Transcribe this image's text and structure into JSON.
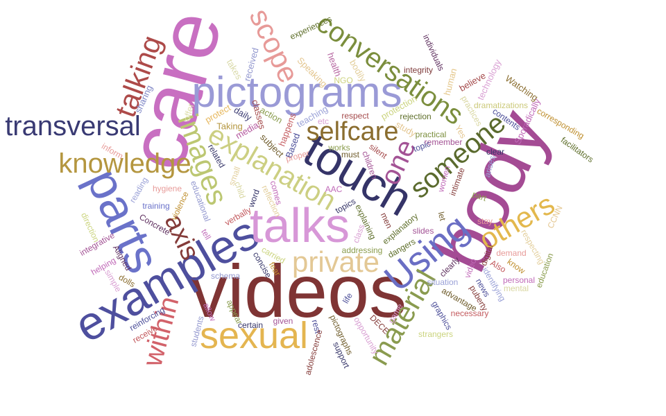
{
  "words": {
    "videos": {
      "text": "videos",
      "color": "#7f3434"
    },
    "care": {
      "text": "care",
      "color": "#c86fc1"
    },
    "body": {
      "text": "body",
      "color": "#a44b94"
    },
    "pictograms": {
      "text": "pictograms",
      "color": "#9a9ad6"
    },
    "examples": {
      "text": "examples",
      "color": "#4e4f9e"
    },
    "talks": {
      "text": "talks",
      "color": "#d797d7"
    },
    "touch": {
      "text": "touch",
      "color": "#353468"
    },
    "transversal": {
      "text": "transversal",
      "color": "#393a73"
    },
    "sexual": {
      "text": "sexual",
      "color": "#e4b550"
    },
    "parts": {
      "text": "parts",
      "color": "#6a72c9"
    },
    "explanation": {
      "text": "explanation",
      "color": "#cccf82"
    },
    "conversations": {
      "text": "conversations",
      "color": "#7b8e3d"
    },
    "Using": {
      "text": "Using",
      "color": "#6a6ec4"
    },
    "knowledge": {
      "text": "knowledge",
      "color": "#b4963f"
    },
    "private": {
      "text": "private",
      "color": "#e3c895"
    },
    "material": {
      "text": "material",
      "color": "#8a9b4f"
    },
    "selfcare": {
      "text": "selfcare",
      "color": "#8a6d2f"
    },
    "someone": {
      "text": "someone",
      "color": "#5a6a2d"
    },
    "others": {
      "text": "others",
      "color": "#e3b84d"
    },
    "images": {
      "text": "images",
      "color": "#bcc772"
    },
    "talking": {
      "text": "talking",
      "color": "#ad4a49"
    },
    "scope": {
      "text": "scope",
      "color": "#e79a98"
    },
    "within": {
      "text": "within",
      "color": "#d2626a"
    },
    "axis": {
      "text": "axis",
      "color": "#843b39"
    },
    "one": {
      "text": "one",
      "color": "#a35395"
    },
    "experiences": {
      "text": "experiences",
      "color": "#5e6e2a"
    },
    "received": {
      "text": "received",
      "color": "#9297ce"
    },
    "takes": {
      "text": "takes",
      "color": "#d9d9a8"
    },
    "sharing": {
      "text": "sharing",
      "color": "#7d85c5"
    },
    "offer": {
      "text": "offer",
      "color": "#dfe0b0"
    },
    "protect": {
      "text": "protect",
      "color": "#e6b75c"
    },
    "daily": {
      "text": "daily",
      "color": "#3e3e74"
    },
    "classes": {
      "text": "classes",
      "color": "#a44a4b"
    },
    "action": {
      "text": "action",
      "color": "#8a9c4d"
    },
    "Taking": {
      "text": "Taking",
      "color": "#b4963f"
    },
    "media": {
      "text": "media",
      "color": "#b4579e"
    },
    "health": {
      "text": "health",
      "color": "#b5649f"
    },
    "bodily": {
      "text": "bodily",
      "color": "#e3cf9c"
    },
    "NGO": {
      "text": "NGO",
      "color": "#cdd27f"
    },
    "Speaking": {
      "text": "Speaking",
      "color": "#e3c58e"
    },
    "teaching": {
      "text": "teaching",
      "color": "#9aa1d7"
    },
    "happens": {
      "text": "happens",
      "color": "#c35a5e"
    },
    "subject": {
      "text": "subject",
      "color": "#6e5b2a"
    },
    "Based": {
      "text": "Based",
      "color": "#4b4d98"
    },
    "etc": {
      "text": "etc",
      "color": "#d9a0d3"
    },
    "respect": {
      "text": "respect",
      "color": "#a44a4b"
    },
    "protection": {
      "text": "protection",
      "color": "#cbd47f"
    },
    "integrity": {
      "text": "integrity",
      "color": "#7e3a3a"
    },
    "individuals": {
      "text": "individuals",
      "color": "#5e2f5e"
    },
    "human": {
      "text": "human",
      "color": "#e4c78b"
    },
    "believe": {
      "text": "believe",
      "color": "#a44a4b"
    },
    "technology": {
      "text": "technology",
      "color": "#d9a0d3"
    },
    "Watching": {
      "text": "Watching",
      "color": "#8a6d2f"
    },
    "practices": {
      "text": "practices",
      "color": "#d8d6a0"
    },
    "dramatizations": {
      "text": "dramatizations",
      "color": "#cbc979"
    },
    "contents": {
      "text": "contents",
      "color": "#4b4d98"
    },
    "Sporadically": {
      "text": "Sporadically",
      "color": "#c06ab8"
    },
    "corresponding": {
      "text": "corresponding",
      "color": "#bf8f2f"
    },
    "facilitators": {
      "text": "facilitators",
      "color": "#5e6e2a"
    },
    "rejection": {
      "text": "rejection",
      "color": "#5e6e2a"
    },
    "study": {
      "text": "study",
      "color": "#e3c58e"
    },
    "practical": {
      "text": "practical",
      "color": "#7b8e3d"
    },
    "remember": {
      "text": "remember",
      "color": "#a35395"
    },
    "topic": {
      "text": "topic",
      "color": "#4b4d98"
    },
    "Yes": {
      "text": "Yes",
      "color": "#e3c58e"
    },
    "works": {
      "text": "works",
      "color": "#8a9c4d"
    },
    "must": {
      "text": "must",
      "color": "#6e5b2a"
    },
    "silent": {
      "text": "silent",
      "color": "#a44a4b"
    },
    "children": {
      "text": "children",
      "color": "#a35395"
    },
    "clear": {
      "text": "clear",
      "color": "#353468"
    },
    "arises": {
      "text": "arises",
      "color": "#9aa1d7"
    },
    "women": {
      "text": "women",
      "color": "#c06ab8"
    },
    "intimate": {
      "text": "intimate",
      "color": "#843b39"
    },
    "part": {
      "text": "part",
      "color": "#8a9c4d"
    },
    "stay": {
      "text": "stay",
      "color": "#e79a98"
    },
    "CCNN": {
      "text": "CCNN",
      "color": "#e3c58e"
    },
    "respecting": {
      "text": "respecting",
      "color": "#e3cf9c"
    },
    "related": {
      "text": "related",
      "color": "#353468"
    },
    "small": {
      "text": "small",
      "color": "#e3cf9c"
    },
    "proper": {
      "text": "proper",
      "color": "#e79a98"
    },
    "AAC": {
      "text": "AAC",
      "color": "#c06ab8"
    },
    "topics": {
      "text": "topics",
      "color": "#353468"
    },
    "men": {
      "text": "men",
      "color": "#843b39"
    },
    "explaining": {
      "text": "explaining",
      "color": "#5e6e2a"
    },
    "explanatory": {
      "text": "explanatory",
      "color": "#5e6e2a"
    },
    "slides": {
      "text": "slides",
      "color": "#a35395"
    },
    "let": {
      "text": "let",
      "color": "#6e5b2a"
    },
    "hygiene": {
      "text": "hygiene",
      "color": "#e79a98"
    },
    "reading": {
      "text": "reading",
      "color": "#9aa1d7"
    },
    "inform": {
      "text": "inform",
      "color": "#e79a98"
    },
    "educational": {
      "text": "educational",
      "color": "#9297ce"
    },
    "child": {
      "text": "child",
      "color": "#d8d6a0"
    },
    "word": {
      "text": "word",
      "color": "#353468"
    },
    "comes": {
      "text": "comes",
      "color": "#c06ab8"
    },
    "reflection": {
      "text": "reflection",
      "color": "#e3cf9c"
    },
    "verbally": {
      "text": "verbally",
      "color": "#c35a5e"
    },
    "training": {
      "text": "training",
      "color": "#6a72c9"
    },
    "violence": {
      "text": "violence",
      "color": "#bf8f2f"
    },
    "Concrete": {
      "text": "Concrete",
      "color": "#5e2f5e"
    },
    "tell": {
      "text": "tell",
      "color": "#c06ab8"
    },
    "direction": {
      "text": "direction",
      "color": "#cbd47f"
    },
    "integrative": {
      "text": "integrative",
      "color": "#a35395"
    },
    "Aligned": {
      "text": "Aligned",
      "color": "#5e2f5e"
    },
    "helping": {
      "text": "helping",
      "color": "#c06ab8"
    },
    "simple": {
      "text": "simple",
      "color": "#d9a0d3"
    },
    "dolls": {
      "text": "dolls",
      "color": "#8a6d2f"
    },
    "class": {
      "text": "class",
      "color": "#d9a0d3"
    },
    "addressing": {
      "text": "addressing",
      "color": "#8a9c4d"
    },
    "dangers": {
      "text": "dangers",
      "color": "#5e6e2a"
    },
    "carried": {
      "text": "carried",
      "color": "#cbd47f"
    },
    "clearly": {
      "text": "clearly",
      "color": "#5e2f5e"
    },
    "video": {
      "text": "video",
      "color": "#c06ab8"
    },
    "digital": {
      "text": "digital",
      "color": "#843b39"
    },
    "demand": {
      "text": "demand",
      "color": "#e79a98"
    },
    "Also": {
      "text": "Also",
      "color": "#c35a5e"
    },
    "know": {
      "text": "know",
      "color": "#bf8f2f"
    },
    "education": {
      "text": "education",
      "color": "#8a9c4d"
    },
    "personal": {
      "text": "personal",
      "color": "#c06ab8"
    },
    "mental": {
      "text": "mental",
      "color": "#d8d6a0"
    },
    "situation": {
      "text": "situation",
      "color": "#9aa1d7"
    },
    "identifying": {
      "text": "identifying",
      "color": "#9aa1d7"
    },
    "advantage": {
      "text": "advantage",
      "color": "#6e5b2a"
    },
    "puberty": {
      "text": "puberty",
      "color": "#843b39"
    },
    "news": {
      "text": "news",
      "color": "#4b4d98"
    },
    "concise": {
      "text": "concise",
      "color": "#353468"
    },
    "fear": {
      "text": "fear",
      "color": "#bf8f2f"
    },
    "schema": {
      "text": "schema",
      "color": "#9297ce"
    },
    "life": {
      "text": "life",
      "color": "#4b4d98"
    },
    "graphics": {
      "text": "graphics",
      "color": "#4b4d98"
    },
    "necessary": {
      "text": "necessary",
      "color": "#c35a5e"
    },
    "reinforcing": {
      "text": "reinforcing",
      "color": "#4b4d98"
    },
    "receive": {
      "text": "receive",
      "color": "#c35a5e"
    },
    "appear": {
      "text": "appear",
      "color": "#8a9c4d"
    },
    "allow": {
      "text": "allow",
      "color": "#c06ab8"
    },
    "students": {
      "text": "students",
      "color": "#9297ce"
    },
    "certain": {
      "text": "certain",
      "color": "#353468"
    },
    "given": {
      "text": "given",
      "color": "#a35395"
    },
    "rest": {
      "text": "rest",
      "color": "#4b4d98"
    },
    "DECE": {
      "text": "DECE",
      "color": "#843b39"
    },
    "game": {
      "text": "game",
      "color": "#d9a0d3"
    },
    "pictographs": {
      "text": "pictographs",
      "color": "#6e5b2a"
    },
    "opportunity": {
      "text": "opportunity",
      "color": "#d9a0d3"
    },
    "adolescence": {
      "text": "adolescence",
      "color": "#843b39"
    },
    "support": {
      "text": "support",
      "color": "#353468"
    },
    "strangers": {
      "text": "strangers",
      "color": "#cbd47f"
    }
  }
}
